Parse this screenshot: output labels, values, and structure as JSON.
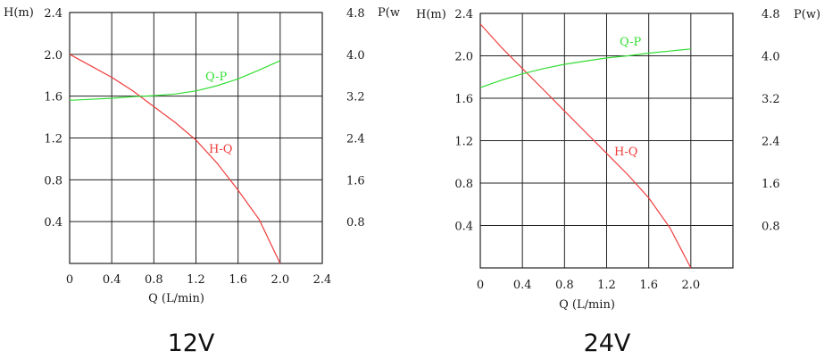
{
  "chart_data": [
    {
      "type": "line",
      "title": "12V",
      "xlabel": "Q (L/min)",
      "ylabel_left": "H(m)",
      "ylabel_right": "P(w",
      "xlim": [
        0,
        2.4
      ],
      "ylim_left": [
        0,
        2.4
      ],
      "ylim_right": [
        0,
        4.8
      ],
      "x_ticks": [
        "0",
        "0.4",
        "0.8",
        "1.2",
        "1.6",
        "2.0",
        "2.4"
      ],
      "y_left_ticks": [
        "0.4",
        "0.8",
        "1.2",
        "1.6",
        "2.0",
        "2.4"
      ],
      "y_right_ticks": [
        "0.8",
        "1.6",
        "2.4",
        "3.2",
        "4.0",
        "4.8"
      ],
      "grid": true,
      "series": [
        {
          "name": "H-Q",
          "axis": "left",
          "color": "#f03c3c",
          "x": [
            0,
            0.2,
            0.4,
            0.6,
            0.8,
            1.0,
            1.2,
            1.4,
            1.6,
            1.8,
            2.0
          ],
          "y": [
            2.0,
            1.89,
            1.78,
            1.65,
            1.5,
            1.35,
            1.18,
            0.96,
            0.7,
            0.42,
            0.0
          ]
        },
        {
          "name": "Q-P",
          "axis": "right",
          "color": "#33dd33",
          "x": [
            0,
            0.2,
            0.4,
            0.6,
            0.8,
            1.0,
            1.2,
            1.4,
            1.6,
            1.8,
            2.0
          ],
          "y": [
            3.12,
            3.14,
            3.16,
            3.19,
            3.21,
            3.24,
            3.3,
            3.4,
            3.53,
            3.7,
            3.88
          ]
        }
      ]
    },
    {
      "type": "line",
      "title": "24V",
      "xlabel": "Q (L/min)",
      "ylabel_left": "H(m)",
      "ylabel_right": "P(w)",
      "xlim": [
        0,
        2.4
      ],
      "ylim_left": [
        0,
        2.4
      ],
      "ylim_right": [
        0,
        4.8
      ],
      "x_ticks": [
        "0",
        "0.4",
        "0.8",
        "1.2",
        "1.6",
        "2.0"
      ],
      "y_left_ticks": [
        "0.4",
        "0.8",
        "1.2",
        "1.6",
        "2.0",
        "2.4"
      ],
      "y_right_ticks": [
        "0.8",
        "1.6",
        "2.4",
        "3.2",
        "4.0",
        "4.8"
      ],
      "grid": true,
      "series": [
        {
          "name": "H-Q",
          "axis": "left",
          "color": "#f03c3c",
          "x": [
            0,
            0.2,
            0.4,
            0.6,
            0.8,
            1.0,
            1.2,
            1.4,
            1.6,
            1.8,
            2.0
          ],
          "y": [
            2.3,
            2.08,
            1.88,
            1.68,
            1.48,
            1.28,
            1.08,
            0.88,
            0.66,
            0.38,
            0.0
          ]
        },
        {
          "name": "Q-P",
          "axis": "right",
          "color": "#33dd33",
          "x": [
            0,
            0.2,
            0.4,
            0.6,
            0.8,
            1.0,
            1.2,
            1.4,
            1.6,
            1.8,
            2.0
          ],
          "y": [
            3.4,
            3.54,
            3.66,
            3.76,
            3.84,
            3.9,
            3.96,
            4.0,
            4.05,
            4.09,
            4.13
          ]
        }
      ]
    }
  ]
}
